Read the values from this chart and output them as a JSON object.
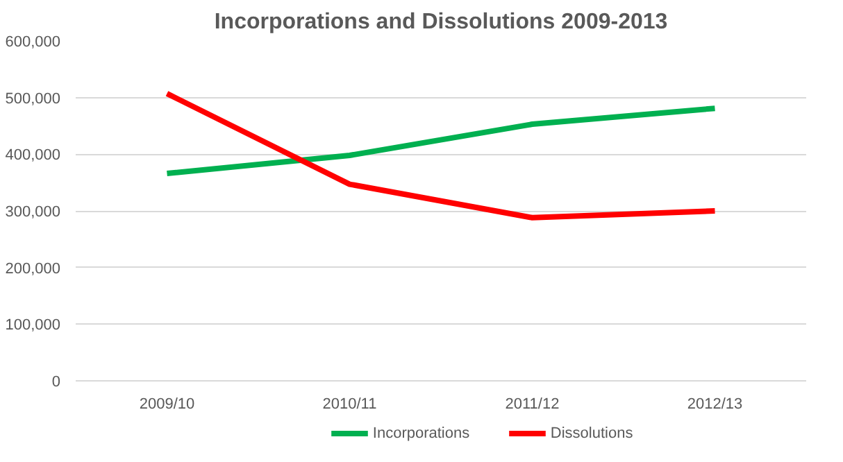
{
  "chart_data": {
    "type": "line",
    "title": "Incorporations and Dissolutions 2009-2013",
    "categories": [
      "2009/10",
      "2010/11",
      "2011/12",
      "2012/13"
    ],
    "series": [
      {
        "name": "Incorporations",
        "color": "#00b050",
        "values": [
          366000,
          398000,
          453000,
          481000
        ]
      },
      {
        "name": "Dissolutions",
        "color": "#ff0000",
        "values": [
          507000,
          347000,
          288000,
          300000
        ]
      }
    ],
    "ylim": [
      0,
      600000
    ],
    "yticks": [
      {
        "value": 0,
        "label": "0"
      },
      {
        "value": 100000,
        "label": "100,000"
      },
      {
        "value": 200000,
        "label": "200,000"
      },
      {
        "value": 300000,
        "label": "300,000"
      },
      {
        "value": 400000,
        "label": "400,000"
      },
      {
        "value": 500000,
        "label": "500,000"
      },
      {
        "value": 600000,
        "label": "600,000"
      }
    ],
    "grid": "y",
    "legend": "bottom",
    "marker": "none",
    "line_style": "solid"
  }
}
